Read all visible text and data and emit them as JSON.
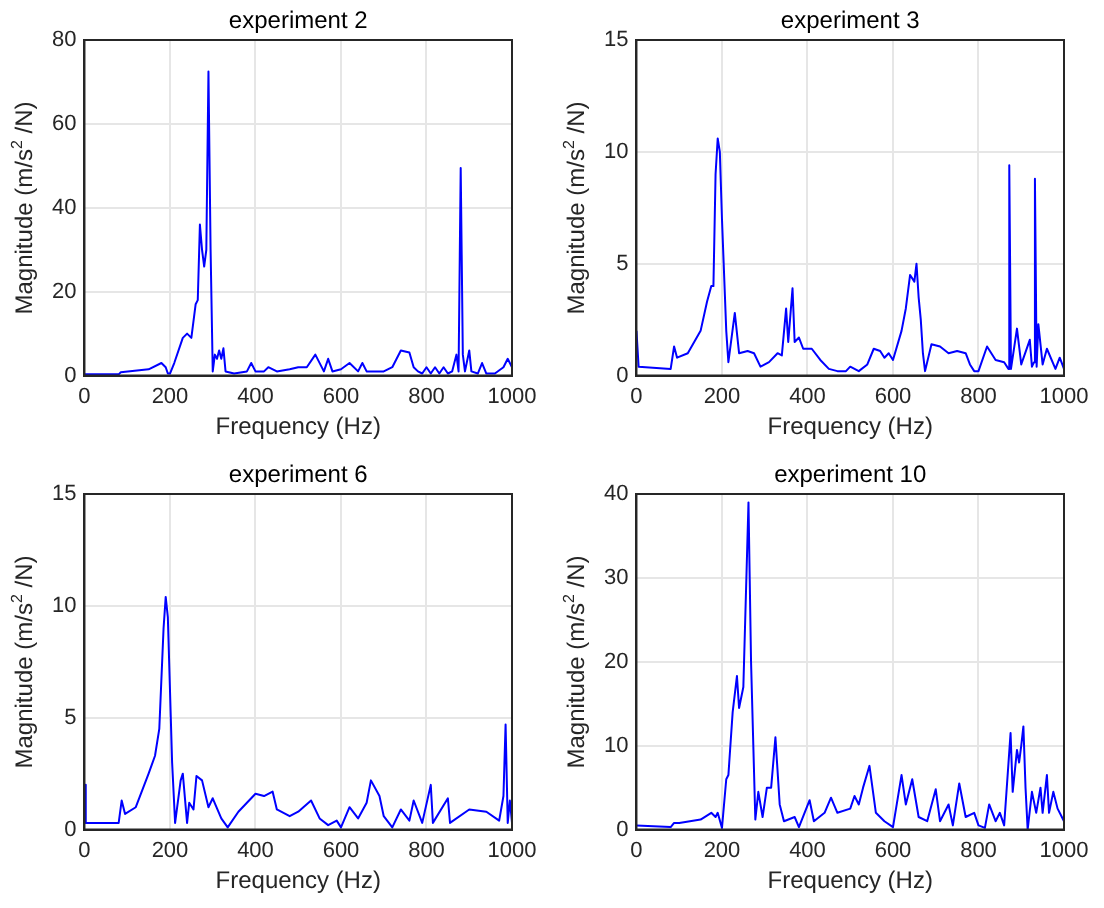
{
  "chart_data": [
    {
      "type": "line",
      "title": "experiment 2",
      "xlabel": "Frequency (Hz)",
      "ylabel": "Magnitude (m/s$^{2}$ /N)",
      "grid": true,
      "xlim": [
        0,
        1000
      ],
      "xticks": [
        0,
        200,
        400,
        600,
        800,
        1000
      ],
      "ylim": [
        0,
        80
      ],
      "yticks": [
        0,
        20,
        40,
        60,
        80
      ],
      "x": [
        0,
        80,
        85,
        150,
        180,
        190,
        195,
        200,
        210,
        230,
        240,
        250,
        260,
        265,
        270,
        275,
        280,
        285,
        290,
        295,
        300,
        305,
        310,
        315,
        320,
        325,
        330,
        350,
        380,
        390,
        400,
        420,
        430,
        450,
        480,
        500,
        520,
        540,
        560,
        570,
        580,
        600,
        620,
        640,
        650,
        660,
        700,
        720,
        740,
        760,
        770,
        780,
        790,
        800,
        810,
        820,
        830,
        840,
        850,
        860,
        870,
        875,
        880,
        885,
        890,
        900,
        905,
        920,
        930,
        940,
        960,
        980,
        990,
        1000
      ],
      "series": [
        {
          "color": "#0000ff",
          "values": [
            0.3,
            0.3,
            0.8,
            1.5,
            3,
            2,
            0.5,
            0.5,
            3,
            9,
            10,
            9,
            17,
            18,
            36,
            30,
            26,
            30,
            72.5,
            30,
            1,
            5,
            4,
            6,
            4,
            6.5,
            1,
            0.5,
            1,
            3,
            1,
            1,
            2,
            1,
            1.5,
            2,
            2,
            5,
            1,
            4,
            1,
            1.5,
            3,
            1,
            3,
            1,
            1,
            2,
            6,
            5.5,
            2,
            1,
            0.5,
            2,
            0.5,
            2,
            0.5,
            2,
            0.5,
            1,
            5,
            1,
            49.5,
            5,
            1,
            6,
            1,
            0.5,
            3,
            0.5,
            0.5,
            2,
            4,
            2
          ]
        }
      ]
    },
    {
      "type": "line",
      "title": "experiment 3",
      "xlabel": "Frequency (Hz)",
      "ylabel": "Magnitude (m/s$^{2}$ /N)",
      "grid": true,
      "xlim": [
        0,
        1000
      ],
      "xticks": [
        0,
        200,
        400,
        600,
        800,
        1000
      ],
      "ylim": [
        0,
        15
      ],
      "yticks": [
        0,
        5,
        10,
        15
      ],
      "x": [
        0,
        5,
        80,
        88,
        95,
        120,
        150,
        165,
        175,
        180,
        185,
        190,
        195,
        200,
        210,
        215,
        230,
        240,
        260,
        275,
        290,
        310,
        330,
        340,
        350,
        355,
        365,
        370,
        380,
        390,
        410,
        430,
        450,
        470,
        490,
        500,
        520,
        540,
        555,
        570,
        580,
        590,
        600,
        620,
        630,
        640,
        650,
        655,
        660,
        665,
        670,
        675,
        690,
        710,
        730,
        750,
        770,
        780,
        790,
        800,
        820,
        840,
        860,
        870,
        872,
        876,
        890,
        900,
        920,
        925,
        930,
        932,
        936,
        940,
        950,
        960,
        980,
        990,
        1000
      ],
      "series": [
        {
          "color": "#0000ff",
          "values": [
            2,
            0.4,
            0.3,
            1.3,
            0.8,
            1,
            2,
            3.3,
            4,
            4,
            9,
            10.6,
            10,
            7,
            2,
            0.6,
            2.8,
            1,
            1.1,
            1,
            0.4,
            0.6,
            1,
            0.9,
            3,
            1.5,
            3.9,
            1.5,
            1.7,
            1.2,
            1.2,
            0.7,
            0.3,
            0.2,
            0.2,
            0.4,
            0.2,
            0.5,
            1.2,
            1.1,
            0.8,
            1,
            0.7,
            2,
            3,
            4.5,
            4.2,
            5,
            3.5,
            2.5,
            1,
            0.2,
            1.4,
            1.3,
            1,
            1.1,
            1,
            0.5,
            0.2,
            0.2,
            1.3,
            0.7,
            0.6,
            0.3,
            9.4,
            0.3,
            2.1,
            0.5,
            1.6,
            0.4,
            0.6,
            8.8,
            0.4,
            2.3,
            0.5,
            1.2,
            0.3,
            0.8,
            0.3
          ]
        }
      ]
    },
    {
      "type": "line",
      "title": "experiment 6",
      "xlabel": "Frequency (Hz)",
      "ylabel": "Magnitude (m/s$^{2}$ /N)",
      "grid": true,
      "xlim": [
        0,
        1000
      ],
      "xticks": [
        0,
        200,
        400,
        600,
        800,
        1000
      ],
      "ylim": [
        0,
        15
      ],
      "yticks": [
        0,
        5,
        10,
        15
      ],
      "x": [
        0,
        3,
        80,
        87,
        95,
        120,
        150,
        165,
        175,
        185,
        190,
        195,
        205,
        212,
        225,
        230,
        240,
        245,
        255,
        262,
        275,
        290,
        300,
        320,
        335,
        360,
        380,
        400,
        420,
        440,
        450,
        480,
        500,
        530,
        550,
        570,
        590,
        600,
        620,
        640,
        660,
        670,
        690,
        700,
        720,
        740,
        760,
        770,
        790,
        810,
        815,
        850,
        855,
        900,
        940,
        970,
        980,
        985,
        990,
        995,
        1000
      ],
      "series": [
        {
          "color": "#0000ff",
          "values": [
            2,
            0.3,
            0.3,
            1.3,
            0.7,
            1,
            2.5,
            3.3,
            4.5,
            9,
            10.4,
            9.5,
            3,
            0.3,
            2.2,
            2.5,
            0.3,
            1.2,
            0.9,
            2.4,
            2.2,
            1,
            1.4,
            0.5,
            0.1,
            0.8,
            1.2,
            1.6,
            1.5,
            1.7,
            0.9,
            0.6,
            0.8,
            1.3,
            0.5,
            0.2,
            0.4,
            0.1,
            1,
            0.5,
            1.2,
            2.2,
            1.5,
            0.6,
            0.1,
            0.9,
            0.4,
            1.3,
            0.3,
            2,
            0.3,
            1.4,
            0.3,
            0.9,
            0.8,
            0.4,
            1.5,
            4.7,
            0.3,
            1.3,
            0.3
          ]
        }
      ]
    },
    {
      "type": "line",
      "title": "experiment 10",
      "xlabel": "Frequency (Hz)",
      "ylabel": "Magnitude (m/s$^{2}$ /N)",
      "grid": true,
      "xlim": [
        0,
        1000
      ],
      "xticks": [
        0,
        200,
        400,
        600,
        800,
        1000
      ],
      "ylim": [
        0,
        40
      ],
      "yticks": [
        0,
        10,
        20,
        30,
        40
      ],
      "x": [
        0,
        80,
        88,
        100,
        150,
        175,
        185,
        190,
        200,
        210,
        215,
        225,
        235,
        240,
        250,
        262,
        268,
        278,
        285,
        295,
        305,
        315,
        325,
        335,
        345,
        370,
        380,
        405,
        415,
        440,
        455,
        470,
        500,
        510,
        520,
        530,
        545,
        560,
        580,
        600,
        620,
        630,
        645,
        660,
        680,
        700,
        710,
        730,
        740,
        755,
        770,
        790,
        800,
        815,
        825,
        840,
        850,
        860,
        875,
        880,
        890,
        895,
        900,
        905,
        910,
        915,
        925,
        935,
        945,
        950,
        960,
        965,
        975,
        985,
        995,
        1000
      ],
      "series": [
        {
          "color": "#0000ff",
          "values": [
            0.5,
            0.3,
            0.8,
            0.8,
            1.2,
            2,
            1.5,
            2,
            0.2,
            6,
            6.5,
            14,
            18.3,
            14.5,
            17,
            39,
            20,
            1.2,
            4.5,
            1.5,
            5,
            5,
            11,
            3,
            1,
            1.5,
            0.3,
            3.5,
            1,
            2,
            3.8,
            2,
            2.5,
            4,
            3,
            5,
            7.6,
            2,
            1,
            0.3,
            6.5,
            3,
            6,
            1.5,
            1,
            4.8,
            1,
            3,
            0.5,
            5.5,
            1.5,
            2,
            0.5,
            0.2,
            3,
            1,
            2,
            0.5,
            11.5,
            4.5,
            9.5,
            8,
            10,
            12.3,
            5,
            0,
            4.5,
            2,
            5,
            2,
            6.5,
            2,
            4.5,
            2.5,
            1.5,
            1
          ]
        }
      ]
    }
  ]
}
